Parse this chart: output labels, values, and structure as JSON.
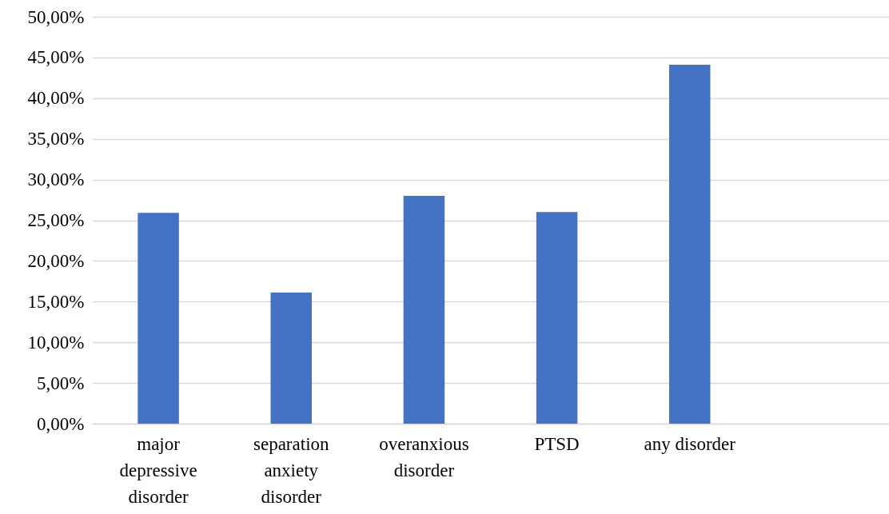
{
  "chart_data": {
    "type": "bar",
    "categories": [
      "major depressive disorder",
      "separation anxiety disorder",
      "overanxious disorder",
      "PTSD",
      "any disorder",
      null
    ],
    "values": [
      25.9,
      16.1,
      28.0,
      26.0,
      44.1,
      null
    ],
    "color": "#4472c4",
    "ylim": [
      0,
      50
    ],
    "yticks": [
      {
        "value": 0,
        "label": "0,00%"
      },
      {
        "value": 5,
        "label": "5,00%"
      },
      {
        "value": 10,
        "label": "10,00%"
      },
      {
        "value": 15,
        "label": "15,00%"
      },
      {
        "value": 20,
        "label": "20,00%"
      },
      {
        "value": 25,
        "label": "25,00%"
      },
      {
        "value": 30,
        "label": "30,00%"
      },
      {
        "value": 35,
        "label": "35,00%"
      },
      {
        "value": 40,
        "label": "40,00%"
      },
      {
        "value": 45,
        "label": "45,00%"
      },
      {
        "value": 50,
        "label": "50,00%"
      }
    ],
    "grid": "y"
  }
}
